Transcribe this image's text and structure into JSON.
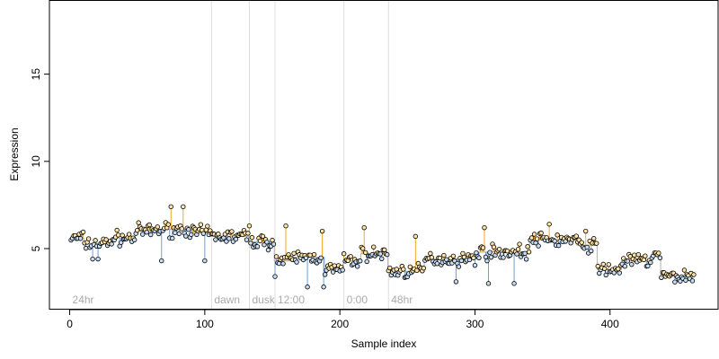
{
  "chart_data": {
    "type": "scatter",
    "title": "",
    "xlabel": "Sample index",
    "ylabel": "Expression",
    "xlim": [
      -15,
      480
    ],
    "ylim": [
      1.5,
      19.2
    ],
    "x_ticks": [
      0,
      100,
      200,
      300,
      400
    ],
    "y_ticks": [
      5,
      10,
      15
    ],
    "grid": false,
    "legend": "none",
    "phase_markers": [
      {
        "label": "24hr",
        "x": 0
      },
      {
        "label": "dawn",
        "x": 105
      },
      {
        "label": "dusk",
        "x": 133
      },
      {
        "label": "12:00",
        "x": 152
      },
      {
        "label": "0:00",
        "x": 203
      },
      {
        "label": "48hr",
        "x": 236
      }
    ],
    "boundaries": [
      105,
      133,
      152,
      203,
      236
    ],
    "colors": {
      "above_segment": "#f5a623",
      "below_segment": "#6a9fd8",
      "above_point": "#fce3a8",
      "below_point": "#c6dcf2",
      "step_line": "#bbbbbb",
      "boundary": "#dddddd",
      "phase_label": "#aaaaaa"
    },
    "n_samples": 462,
    "fitted_levels": [
      {
        "x0": 1,
        "x1": 10,
        "y": 5.6
      },
      {
        "x0": 11,
        "x1": 30,
        "y": 5.3
      },
      {
        "x0": 31,
        "x1": 48,
        "y": 5.6
      },
      {
        "x0": 49,
        "x1": 62,
        "y": 6.0
      },
      {
        "x0": 63,
        "x1": 90,
        "y": 6.1
      },
      {
        "x0": 91,
        "x1": 104,
        "y": 5.9
      },
      {
        "x0": 105,
        "x1": 132,
        "y": 5.7
      },
      {
        "x0": 133,
        "x1": 151,
        "y": 5.4
      },
      {
        "x0": 152,
        "x1": 165,
        "y": 4.3
      },
      {
        "x0": 166,
        "x1": 188,
        "y": 4.5
      },
      {
        "x0": 189,
        "x1": 202,
        "y": 3.8
      },
      {
        "x0": 203,
        "x1": 215,
        "y": 4.3
      },
      {
        "x0": 216,
        "x1": 235,
        "y": 4.7
      },
      {
        "x0": 236,
        "x1": 262,
        "y": 3.7
      },
      {
        "x0": 263,
        "x1": 300,
        "y": 4.4
      },
      {
        "x0": 301,
        "x1": 340,
        "y": 4.8
      },
      {
        "x0": 341,
        "x1": 375,
        "y": 5.5
      },
      {
        "x0": 376,
        "x1": 390,
        "y": 5.2
      },
      {
        "x0": 391,
        "x1": 408,
        "y": 3.8
      },
      {
        "x0": 409,
        "x1": 430,
        "y": 4.3
      },
      {
        "x0": 431,
        "x1": 437,
        "y": 4.6
      },
      {
        "x0": 438,
        "x1": 462,
        "y": 3.4
      }
    ],
    "outliers": [
      {
        "x": 17,
        "y": 4.4
      },
      {
        "x": 21,
        "y": 4.4
      },
      {
        "x": 68,
        "y": 4.3
      },
      {
        "x": 75,
        "y": 7.4
      },
      {
        "x": 84,
        "y": 7.4
      },
      {
        "x": 100,
        "y": 4.3
      },
      {
        "x": 133,
        "y": 6.3
      },
      {
        "x": 152,
        "y": 3.4
      },
      {
        "x": 160,
        "y": 6.3
      },
      {
        "x": 176,
        "y": 2.8
      },
      {
        "x": 187,
        "y": 6.0
      },
      {
        "x": 188,
        "y": 2.8
      },
      {
        "x": 218,
        "y": 6.2
      },
      {
        "x": 256,
        "y": 5.7
      },
      {
        "x": 286,
        "y": 3.1
      },
      {
        "x": 307,
        "y": 6.2
      },
      {
        "x": 310,
        "y": 3.0
      },
      {
        "x": 329,
        "y": 3.0
      },
      {
        "x": 355,
        "y": 6.4
      },
      {
        "x": 382,
        "y": 6.0
      }
    ],
    "noise_seed": 7,
    "noise_amplitude": 0.42
  }
}
